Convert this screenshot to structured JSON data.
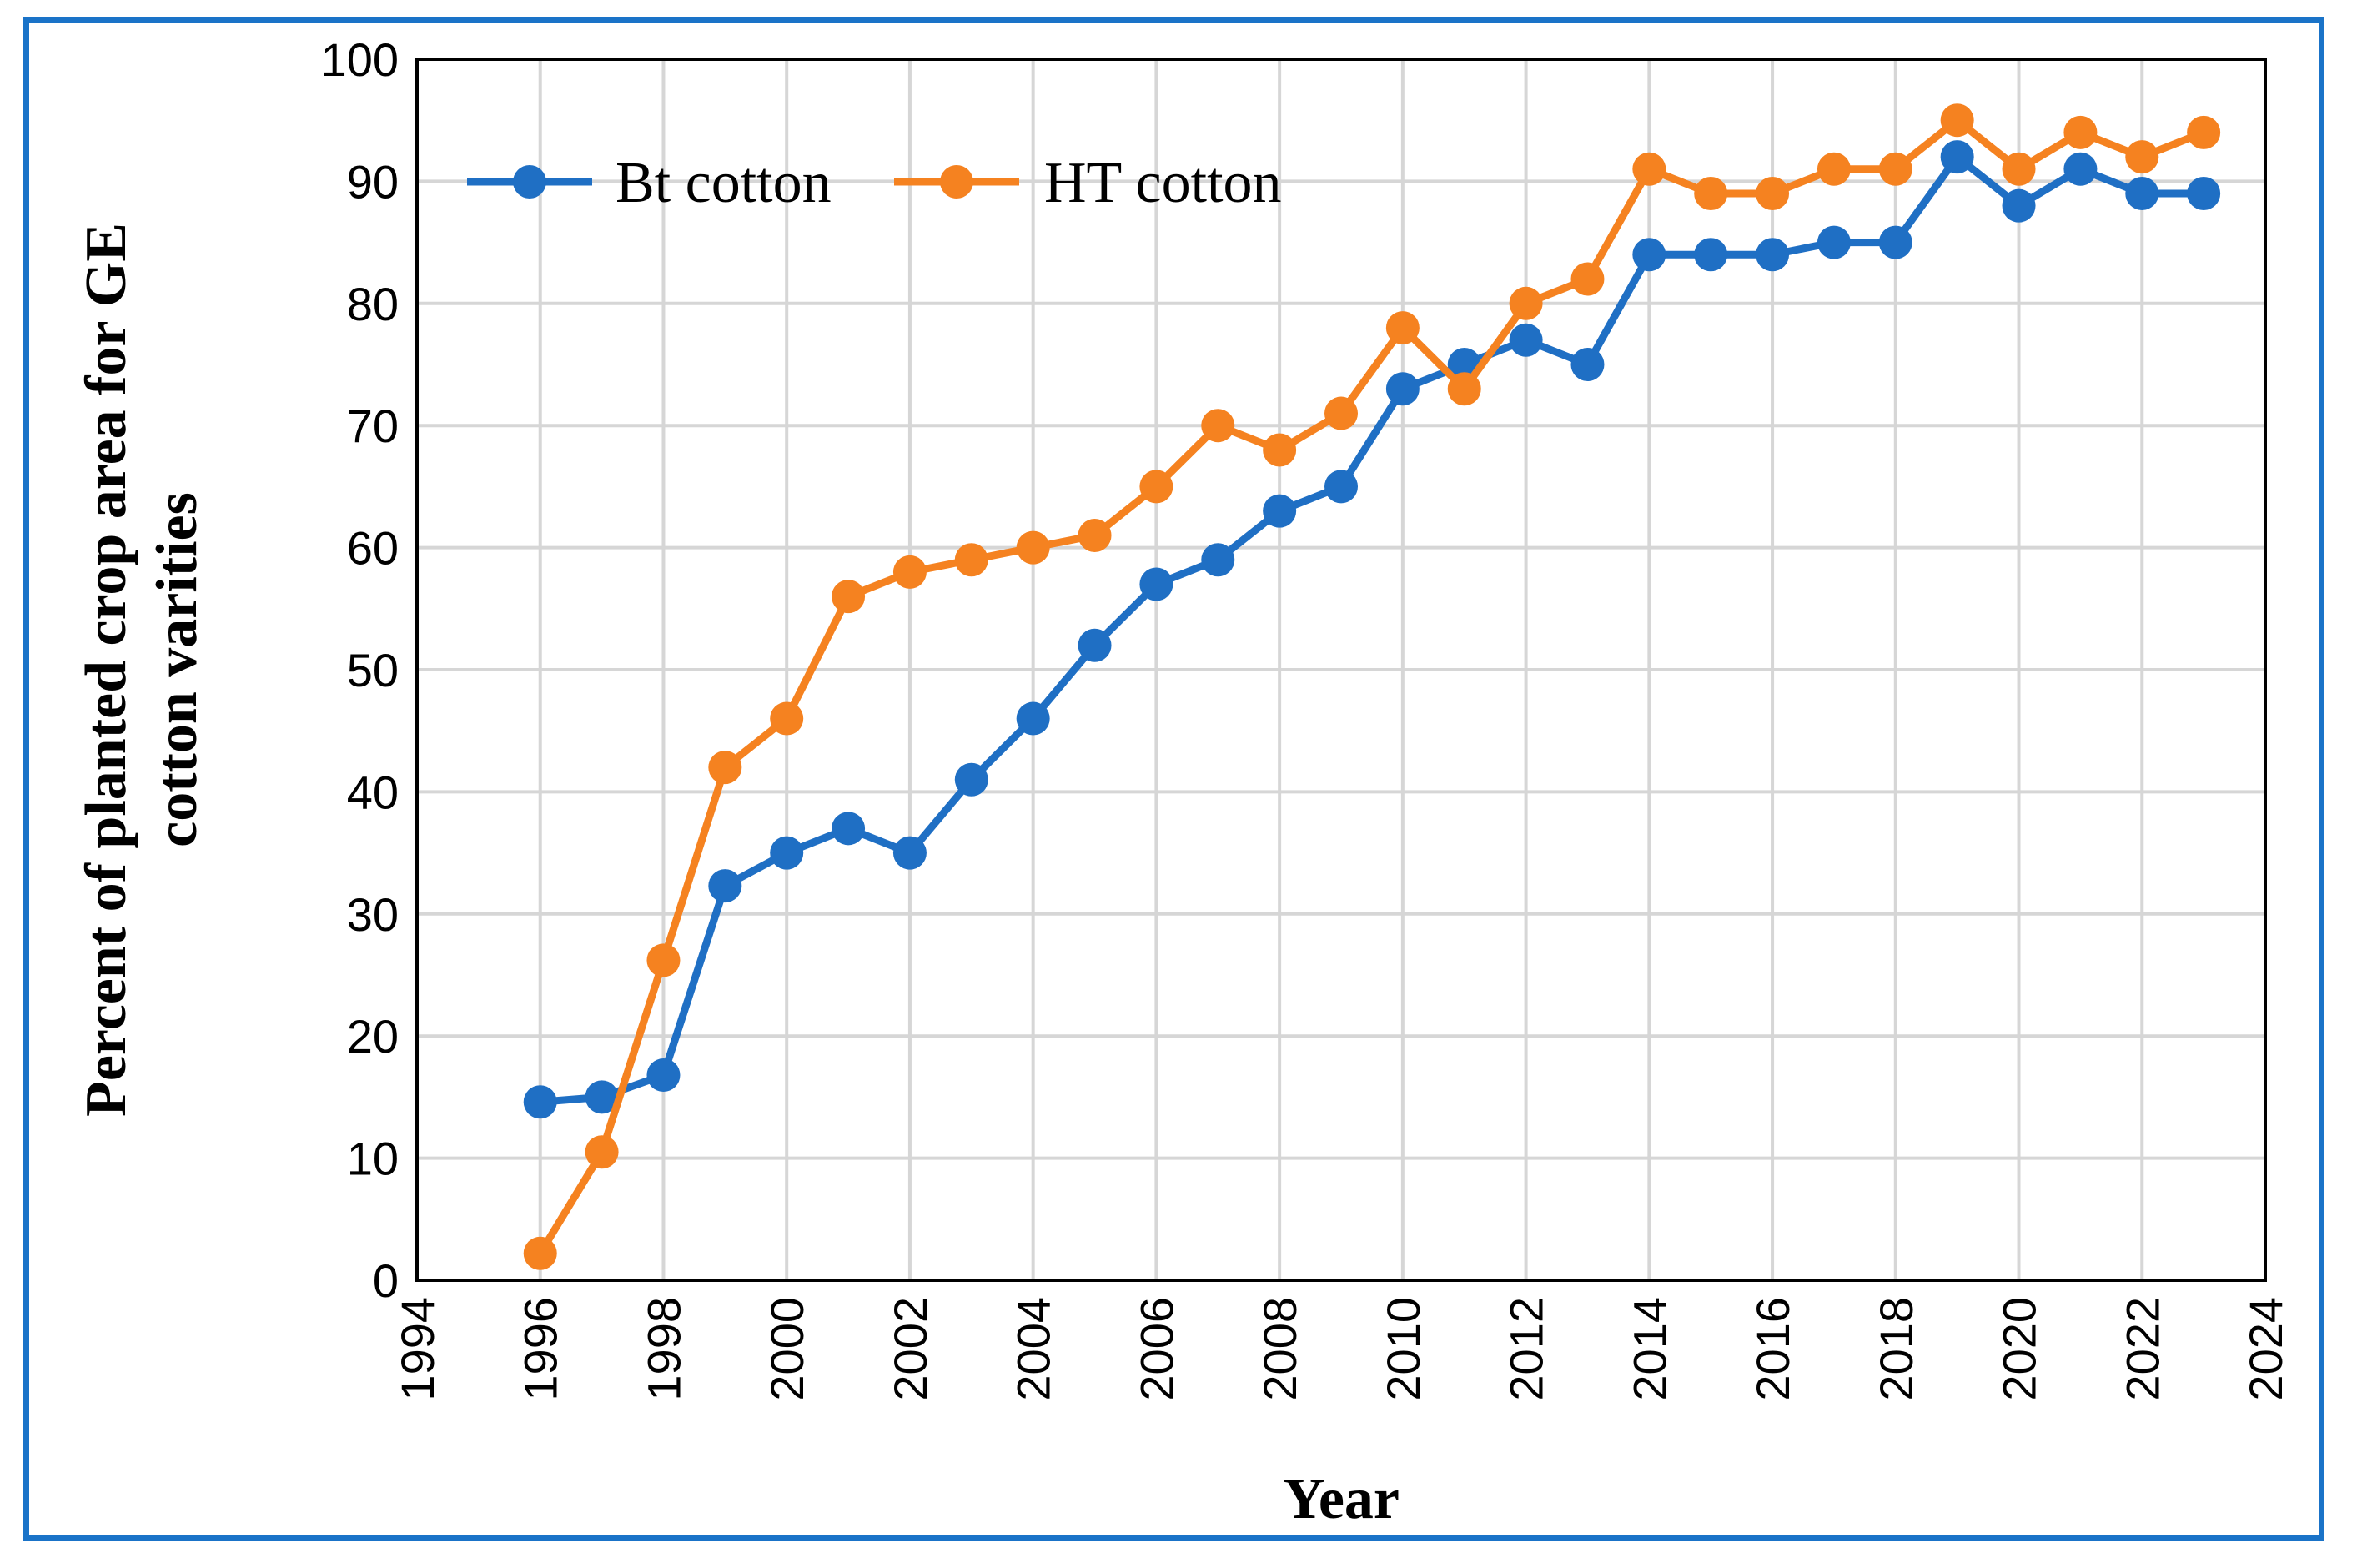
{
  "chart_data": {
    "type": "line",
    "title": "",
    "xlabel": "Year",
    "ylabel_lines": [
      "Percent of planted crop area for GE",
      "cotton varities"
    ],
    "xlim": [
      1994,
      2024
    ],
    "ylim": [
      0,
      100
    ],
    "x_ticks": [
      "1994",
      "1996",
      "1998",
      "2000",
      "2002",
      "2004",
      "2006",
      "2008",
      "2010",
      "2012",
      "2014",
      "2016",
      "2018",
      "2020",
      "2022",
      "2024"
    ],
    "y_ticks": [
      "0",
      "10",
      "20",
      "30",
      "40",
      "50",
      "60",
      "70",
      "80",
      "90",
      "100"
    ],
    "grid": true,
    "legend_position": "top-left",
    "x": [
      1996,
      1997,
      1998,
      1999,
      2000,
      2001,
      2002,
      2003,
      2004,
      2005,
      2006,
      2007,
      2008,
      2009,
      2010,
      2011,
      2012,
      2013,
      2014,
      2015,
      2016,
      2017,
      2018,
      2019,
      2020,
      2021,
      2022,
      2023
    ],
    "series": [
      {
        "name": "Bt cotton",
        "color": "#1f6fc4",
        "values": [
          14.6,
          15,
          16.8,
          32.3,
          35,
          37,
          35,
          41,
          46,
          52,
          57,
          59,
          63,
          65,
          73,
          75,
          77,
          75,
          84,
          84,
          84,
          85,
          85,
          92,
          88,
          91,
          89,
          89
        ]
      },
      {
        "name": "HT cotton",
        "color": "#f58220",
        "values": [
          2.2,
          10.5,
          26.2,
          42,
          46,
          56,
          58,
          59,
          60,
          61,
          65,
          70,
          68,
          71,
          78,
          73,
          80,
          82,
          91,
          89,
          89,
          91,
          91,
          95,
          91,
          94,
          92,
          94
        ]
      }
    ]
  }
}
